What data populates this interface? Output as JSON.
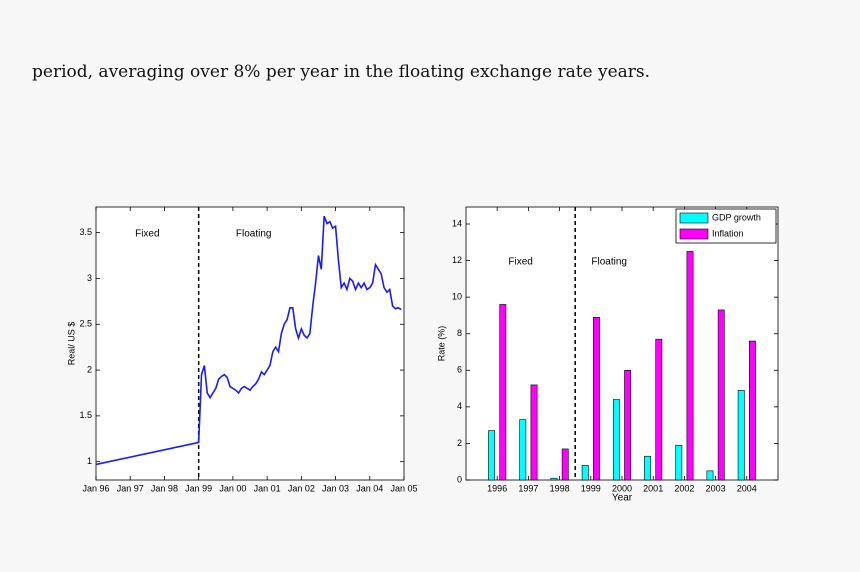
{
  "paragraph": "period, averaging over 8% per year in the floating exchange rate years.",
  "chart_data": [
    {
      "type": "line",
      "ylabel": "Real/ US $",
      "color": "#1a1aff",
      "annotations": [
        "Fixed",
        "Floating"
      ],
      "divider_x": "1999-01",
      "x": [
        "1996-01",
        "1999-01",
        "1999-02",
        "1999-03",
        "1999-04",
        "1999-05",
        "1999-06",
        "1999-07",
        "1999-08",
        "1999-09",
        "1999-10",
        "1999-11",
        "1999-12",
        "2000-01",
        "2000-02",
        "2000-03",
        "2000-04",
        "2000-05",
        "2000-06",
        "2000-07",
        "2000-08",
        "2000-09",
        "2000-10",
        "2000-11",
        "2000-12",
        "2001-01",
        "2001-02",
        "2001-03",
        "2001-04",
        "2001-05",
        "2001-06",
        "2001-07",
        "2001-08",
        "2001-09",
        "2001-10",
        "2001-11",
        "2001-12",
        "2002-01",
        "2002-02",
        "2002-03",
        "2002-04",
        "2002-05",
        "2002-06",
        "2002-07",
        "2002-08",
        "2002-09",
        "2002-10",
        "2002-11",
        "2002-12",
        "2003-01",
        "2003-02",
        "2003-03",
        "2003-04",
        "2003-05",
        "2003-06",
        "2003-07",
        "2003-08",
        "2003-09",
        "2003-10",
        "2003-11",
        "2003-12",
        "2004-01",
        "2004-02",
        "2004-03",
        "2004-04",
        "2004-05",
        "2004-06",
        "2004-07",
        "2004-08",
        "2004-09",
        "2004-10",
        "2004-11",
        "2004-12"
      ],
      "values": [
        0.97,
        1.21,
        1.95,
        2.05,
        1.75,
        1.7,
        1.75,
        1.8,
        1.9,
        1.93,
        1.95,
        1.92,
        1.82,
        1.8,
        1.78,
        1.75,
        1.8,
        1.82,
        1.8,
        1.78,
        1.82,
        1.85,
        1.9,
        1.98,
        1.95,
        2.0,
        2.05,
        2.2,
        2.25,
        2.2,
        2.4,
        2.5,
        2.55,
        2.68,
        2.68,
        2.45,
        2.35,
        2.45,
        2.38,
        2.35,
        2.4,
        2.7,
        2.95,
        3.25,
        3.1,
        3.68,
        3.6,
        3.62,
        3.55,
        3.57,
        3.2,
        2.9,
        2.95,
        2.88,
        3.0,
        2.97,
        2.88,
        2.95,
        2.9,
        2.95,
        2.88,
        2.9,
        2.95,
        3.15,
        3.1,
        3.05,
        2.9,
        2.85,
        2.88,
        2.7,
        2.67,
        2.68,
        2.66
      ],
      "xlim": [
        "1996-01",
        "2005-01"
      ],
      "xticks": [
        {
          "value": "1996-01",
          "label": "Jan 96"
        },
        {
          "value": "1997-01",
          "label": "Jan 97"
        },
        {
          "value": "1998-01",
          "label": "Jan 98"
        },
        {
          "value": "1999-01",
          "label": "Jan 99"
        },
        {
          "value": "2000-01",
          "label": "Jan 00"
        },
        {
          "value": "2001-01",
          "label": "Jan 01"
        },
        {
          "value": "2002-01",
          "label": "Jan 02"
        },
        {
          "value": "2003-01",
          "label": "Jan 03"
        },
        {
          "value": "2004-01",
          "label": "Jan 04"
        },
        {
          "value": "2005-01",
          "label": "Jan 05"
        }
      ],
      "ylim": [
        0.8,
        3.78
      ],
      "yticks": [
        1,
        1.5,
        2,
        2.5,
        3,
        3.5
      ]
    },
    {
      "type": "bar",
      "xlabel": "Year",
      "ylabel": "Rate (%)",
      "legend": "upper right",
      "annotations": [
        "Fixed",
        "Floating"
      ],
      "divider_x": 1998.5,
      "x": [
        1996,
        1997,
        1998,
        1999,
        2000,
        2001,
        2002,
        2003,
        2004
      ],
      "series": [
        {
          "name": "GDP growth",
          "color": "#00ffff",
          "values": [
            2.7,
            3.3,
            0.1,
            0.8,
            4.4,
            1.3,
            1.9,
            0.5,
            4.9
          ]
        },
        {
          "name": "Inflation",
          "color": "#ff00ff",
          "values": [
            9.6,
            5.2,
            1.7,
            8.9,
            6.0,
            7.7,
            12.5,
            9.3,
            7.6
          ]
        }
      ],
      "xlim": [
        1995,
        2005
      ],
      "xticks": [
        1996,
        1997,
        1998,
        1999,
        2000,
        2001,
        2002,
        2003,
        2004
      ],
      "ylim": [
        0,
        14.93
      ],
      "yticks": [
        0,
        2,
        4,
        6,
        8,
        10,
        12,
        14
      ]
    }
  ]
}
